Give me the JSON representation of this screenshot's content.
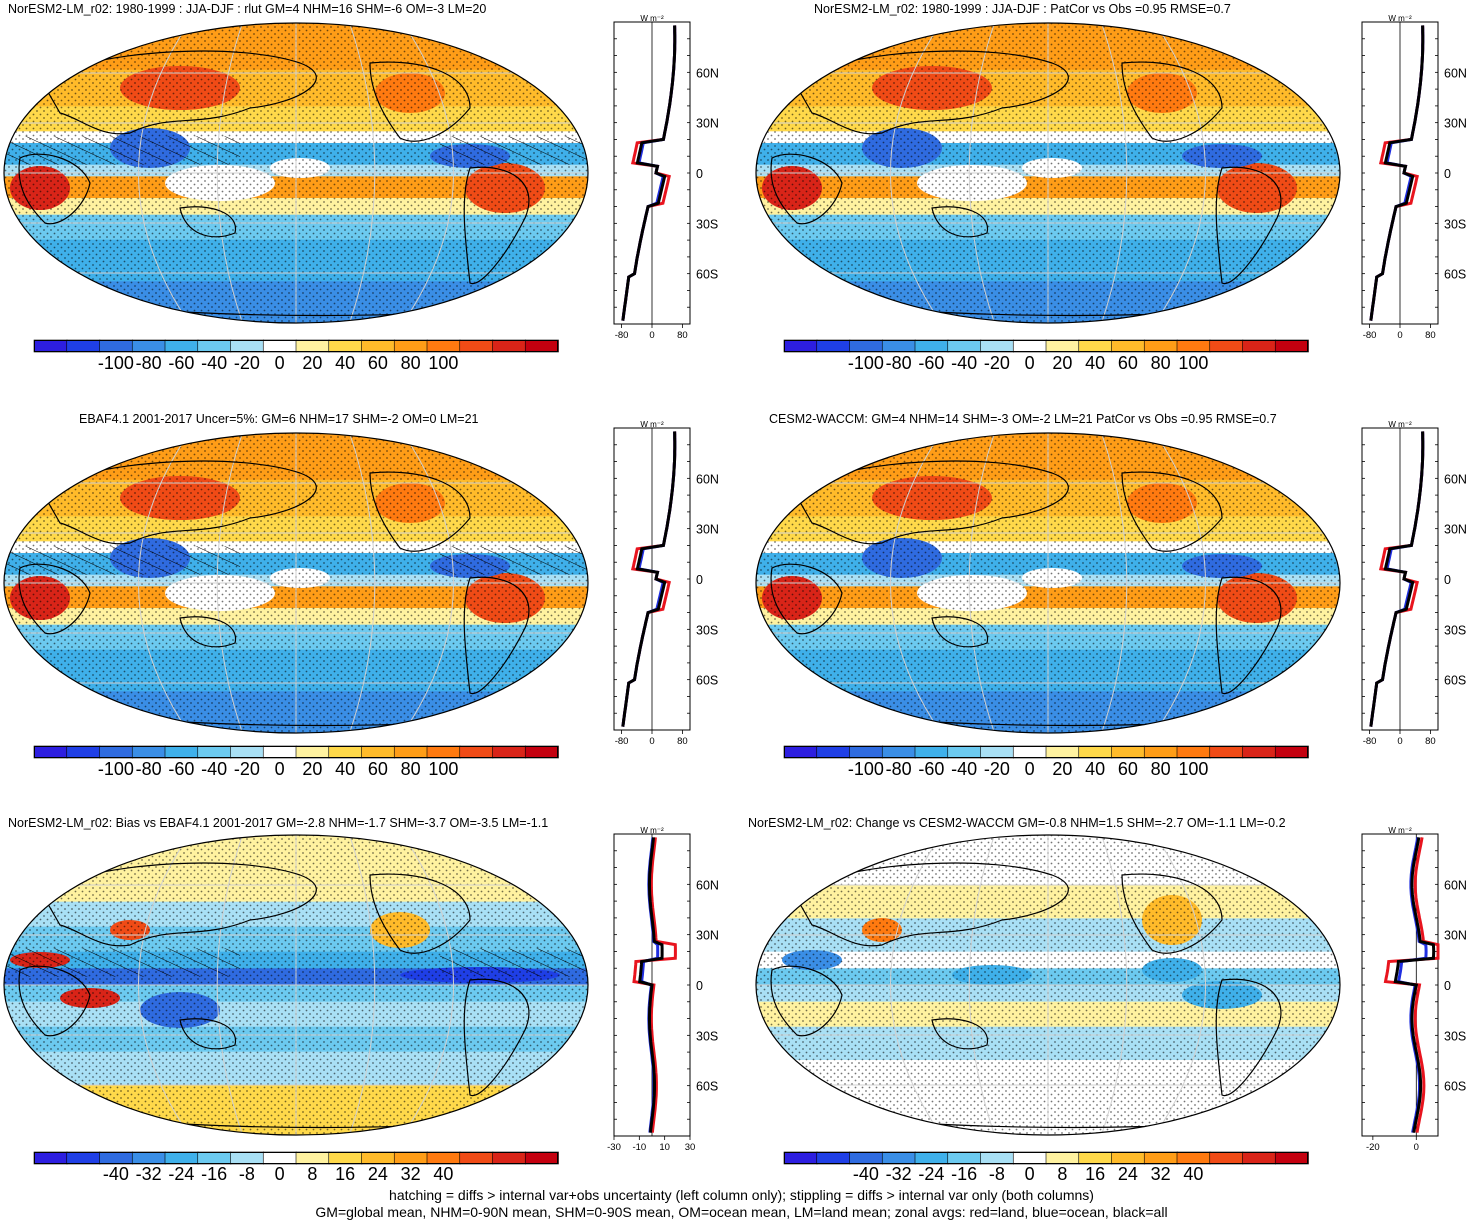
{
  "panels": [
    {
      "title": "NorESM2-LM_r02: 1980-1999 : JJA-DJF : rlut GM=4 NHM=16 SHM=-6 OM=-3 LM=20",
      "colorbar": {
        "labels": [
          "-100",
          "-80",
          "-60",
          "-40",
          "-20",
          "0",
          "20",
          "40",
          "60",
          "80",
          "100"
        ]
      },
      "zonal": {
        "unit": "W m⁻²",
        "xticks": [
          "-80",
          "0",
          "80"
        ],
        "latticks": [
          "60N",
          "30N",
          "0",
          "30S",
          "60S"
        ]
      }
    },
    {
      "title": "NorESM2-LM_r02: 1980-1999 : JJA-DJF : PatCor vs Obs =0.95 RMSE=0.7",
      "colorbar": {
        "labels": [
          "-100",
          "-80",
          "-60",
          "-40",
          "-20",
          "0",
          "20",
          "40",
          "60",
          "80",
          "100"
        ]
      },
      "zonal": {
        "unit": "W m⁻²",
        "xticks": [
          "-80",
          "0",
          "80"
        ],
        "latticks": [
          "60N",
          "30N",
          "0",
          "30S",
          "60S"
        ]
      }
    },
    {
      "title": "EBAF4.1 2001-2017 Uncer=5%: GM=6 NHM=17 SHM=-2 OM=0 LM=21",
      "colorbar": {
        "labels": [
          "-100",
          "-80",
          "-60",
          "-40",
          "-20",
          "0",
          "20",
          "40",
          "60",
          "80",
          "100"
        ]
      },
      "zonal": {
        "unit": "W m⁻²",
        "xticks": [
          "-80",
          "0",
          "80"
        ],
        "latticks": [
          "60N",
          "30N",
          "0",
          "30S",
          "60S"
        ]
      }
    },
    {
      "title": "CESM2-WACCM: GM=4 NHM=14 SHM=-3 OM=-2 LM=21 PatCor vs Obs =0.95 RMSE=0.7",
      "colorbar": {
        "labels": [
          "-100",
          "-80",
          "-60",
          "-40",
          "-20",
          "0",
          "20",
          "40",
          "60",
          "80",
          "100"
        ]
      },
      "zonal": {
        "unit": "W m⁻²",
        "xticks": [
          "-80",
          "0",
          "80"
        ],
        "latticks": [
          "60N",
          "30N",
          "0",
          "30S",
          "60S"
        ]
      }
    },
    {
      "title": "NorESM2-LM_r02: Bias vs EBAF4.1 2001-2017 GM=-2.8 NHM=-1.7 SHM=-3.7 OM=-3.5 LM=-1.1",
      "colorbar": {
        "labels": [
          "-40",
          "-32",
          "-24",
          "-16",
          "-8",
          "0",
          "8",
          "16",
          "24",
          "32",
          "40"
        ]
      },
      "zonal": {
        "unit": "W m⁻²",
        "xticks": [
          "-30",
          "-10",
          "10",
          "30"
        ],
        "latticks": [
          "60N",
          "30N",
          "0",
          "30S",
          "60S"
        ]
      }
    },
    {
      "title": "NorESM2-LM_r02: Change vs CESM2-WACCM GM=-0.8 NHM=1.5 SHM=-2.7 OM=-1.1 LM=-0.2",
      "colorbar": {
        "labels": [
          "-40",
          "-32",
          "-24",
          "-16",
          "-8",
          "0",
          "8",
          "16",
          "24",
          "32",
          "40"
        ]
      },
      "zonal": {
        "unit": "W m⁻²",
        "xticks": [
          "-20",
          "0"
        ],
        "latticks": [
          "60N",
          "30N",
          "0",
          "30S",
          "60S"
        ]
      }
    }
  ],
  "colors": {
    "scale": [
      "#2d1ee0",
      "#1f3fe6",
      "#2f6be0",
      "#3a8ee6",
      "#3fb0ea",
      "#6ccaf0",
      "#a9e0f5",
      "#ffffff",
      "#fff2a0",
      "#ffd94a",
      "#ffbb2a",
      "#ff9d17",
      "#ff7a10",
      "#f04b16",
      "#d92418",
      "#c4000f"
    ],
    "land_line": "#e8141e",
    "ocean_line": "#1f2ee0",
    "all_line": "#000000"
  },
  "footer": {
    "line1": "hatching = diffs > internal var+obs uncertainty (left column only); stippling = diffs > internal var only (both columns)",
    "line2": "GM=global mean, NHM=0-90N mean, SHM=0-90S mean, OM=ocean mean, LM=land mean; zonal avgs: red=land, blue=ocean, black=all"
  }
}
